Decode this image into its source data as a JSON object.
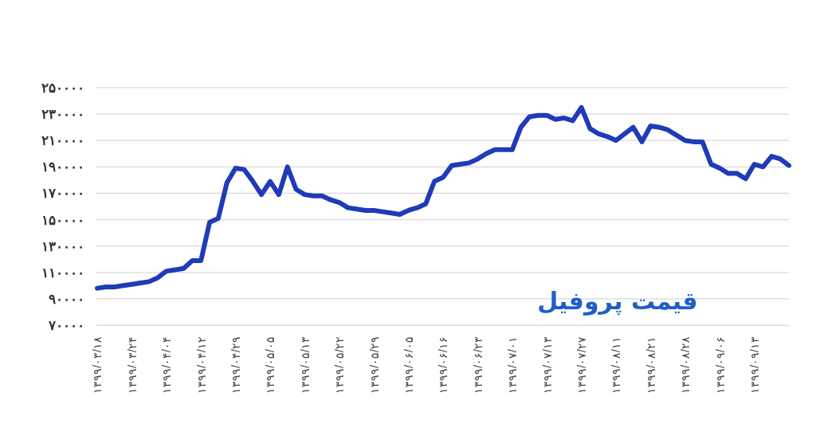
{
  "chart_data": {
    "type": "line",
    "title": "قیمت پروفیل",
    "categories": [
      "۱۳۹۹/۰۳/۱۸",
      null,
      null,
      null,
      "۱۳۹۹/۰۳/۲۴",
      null,
      null,
      null,
      "۱۳۹۹/۰۴/۰۴",
      null,
      null,
      null,
      "۱۳۹۹/۰۴/۱۲",
      null,
      null,
      null,
      "۱۳۹۹/۰۴/۲۹",
      null,
      null,
      null,
      "۱۳۹۹/۰۵/۰۵",
      null,
      null,
      null,
      "۱۳۹۹/۰۵/۱۳",
      null,
      null,
      null,
      "۱۳۹۹/۰۵/۲۲",
      null,
      null,
      null,
      "۱۳۹۹/۰۵/۲۹",
      null,
      null,
      null,
      "۱۳۹۹/۰۶/۰۵",
      null,
      null,
      null,
      "۱۳۹۹/۰۶/۱۶",
      null,
      null,
      null,
      "۱۳۹۹/۰۶/۲۳",
      null,
      null,
      null,
      "۱۳۹۹/۰۷/۰۱",
      null,
      null,
      null,
      "۱۳۹۹/۰۷/۱۳",
      null,
      null,
      null,
      "۱۳۹۹/۰۷/۲۷",
      null,
      null,
      null,
      "۱۳۹۹/۰۸/۱۱",
      null,
      null,
      null,
      "۱۳۹۹/۰۸/۲۱",
      null,
      null,
      null,
      "۱۳۹۹/۰۸/۲۸",
      null,
      null,
      null,
      "۱۳۹۹/۰۹/۰۶",
      null,
      null,
      null,
      "۱۳۹۹/۰۹/۱۳",
      null,
      null,
      null,
      null
    ],
    "series": [
      {
        "color": "#1f3bb8",
        "values": [
          98000,
          99000,
          99000,
          100000,
          101000,
          102000,
          103000,
          106000,
          111000,
          112000,
          113000,
          119000,
          119000,
          148000,
          151000,
          178000,
          189000,
          188000,
          179000,
          169000,
          179000,
          169000,
          190000,
          173000,
          169000,
          168000,
          168000,
          165000,
          163000,
          159000,
          158000,
          157000,
          157000,
          156000,
          155000,
          154000,
          157000,
          159000,
          162000,
          179000,
          182000,
          191000,
          192000,
          193000,
          196000,
          200000,
          203000,
          203000,
          203000,
          220000,
          228000,
          229000,
          229000,
          226000,
          227000,
          225000,
          235000,
          219000,
          215000,
          213000,
          210000,
          215000,
          220000,
          209000,
          221000,
          220000,
          218000,
          214000,
          210000,
          209000,
          209000,
          192000,
          189000,
          185000,
          185000,
          181000,
          192000,
          190000,
          198000,
          196000,
          191000
        ]
      }
    ],
    "ylim": [
      70000,
      250000
    ],
    "yticks": [
      {
        "value": 70000,
        "label": "۷۰۰۰۰"
      },
      {
        "value": 90000,
        "label": "۹۰۰۰۰"
      },
      {
        "value": 110000,
        "label": "۱۱۰۰۰۰"
      },
      {
        "value": 130000,
        "label": "۱۳۰۰۰۰"
      },
      {
        "value": 150000,
        "label": "۱۵۰۰۰۰"
      },
      {
        "value": 170000,
        "label": "۱۷۰۰۰۰"
      },
      {
        "value": 190000,
        "label": "۱۹۰۰۰۰"
      },
      {
        "value": 210000,
        "label": "۲۱۰۰۰۰"
      },
      {
        "value": 230000,
        "label": "۲۳۰۰۰۰"
      },
      {
        "value": 250000,
        "label": "۲۵۰۰۰۰"
      }
    ],
    "grid": "y",
    "marker": "none",
    "line_style": "solid"
  }
}
